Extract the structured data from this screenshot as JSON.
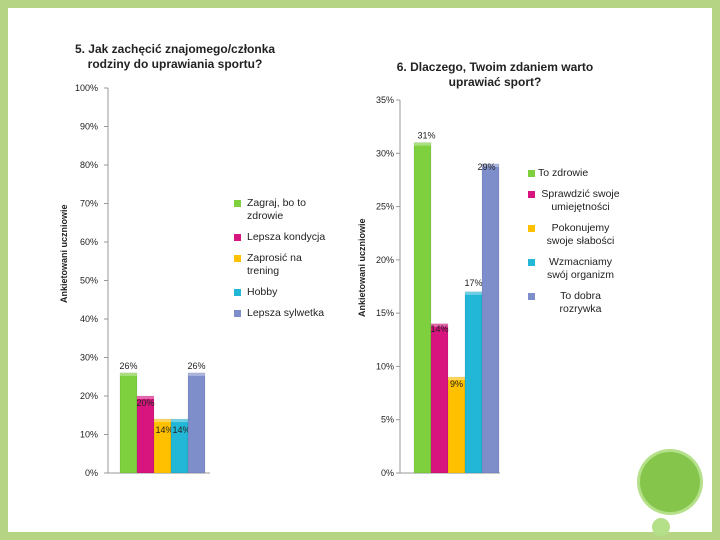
{
  "colors": {
    "frame": "#b5d584",
    "green": "#7ed03e",
    "magenta": "#d8147e",
    "yellow": "#ffc000",
    "cyan": "#22b7d6",
    "blue": "#7e8ecb",
    "deco_dark": "#86c54b",
    "deco_light": "#b5e08a"
  },
  "chart_data": [
    {
      "type": "bar",
      "title": "5. Jak zachęcić znajomego/członka rodziny do uprawiania sportu?",
      "ylabel": "Ankietowani uczniowie",
      "ylim": [
        0,
        100
      ],
      "yticks": [
        "0%",
        "10%",
        "20%",
        "30%",
        "40%",
        "50%",
        "60%",
        "70%",
        "80%",
        "90%",
        "100%"
      ],
      "grid": false,
      "legend_position": "right",
      "series": [
        {
          "name": "Zagraj, bo to zdrowie",
          "value": 26,
          "label": "26%",
          "color": "#7ed03e"
        },
        {
          "name": "Lepsza kondycja",
          "value": 20,
          "label": "20%",
          "color": "#d8147e"
        },
        {
          "name": "Zaprosić na trening",
          "value": 14,
          "label": "14%",
          "color": "#ffc000"
        },
        {
          "name": "Hobby",
          "value": 14,
          "label": "14%",
          "color": "#22b7d6"
        },
        {
          "name": "Lepsza sylwetka",
          "value": 26,
          "label": "26%",
          "color": "#7e8ecb"
        }
      ]
    },
    {
      "type": "bar",
      "title": "6. Dlaczego, Twoim zdaniem warto uprawiać sport?",
      "ylabel": "Ankietowani uczniowie",
      "ylim": [
        0,
        35
      ],
      "yticks": [
        "0%",
        "5%",
        "10%",
        "15%",
        "20%",
        "25%",
        "30%",
        "35%"
      ],
      "grid": false,
      "legend_position": "right",
      "series": [
        {
          "name": "To zdrowie",
          "value": 31,
          "label": "31%",
          "color": "#7ed03e"
        },
        {
          "name": "Sprawdzić swoje umiejętności",
          "value": 14,
          "label": "14%",
          "color": "#d8147e"
        },
        {
          "name": "Pokonujemy swoje słabości",
          "value": 9,
          "label": "9%",
          "color": "#ffc000"
        },
        {
          "name": "Wzmacniamy swój organizm",
          "value": 17,
          "label": "17%",
          "color": "#22b7d6"
        },
        {
          "name": "To dobra rozrywka",
          "value": 29,
          "label": "29%",
          "color": "#7e8ecb"
        }
      ]
    }
  ]
}
